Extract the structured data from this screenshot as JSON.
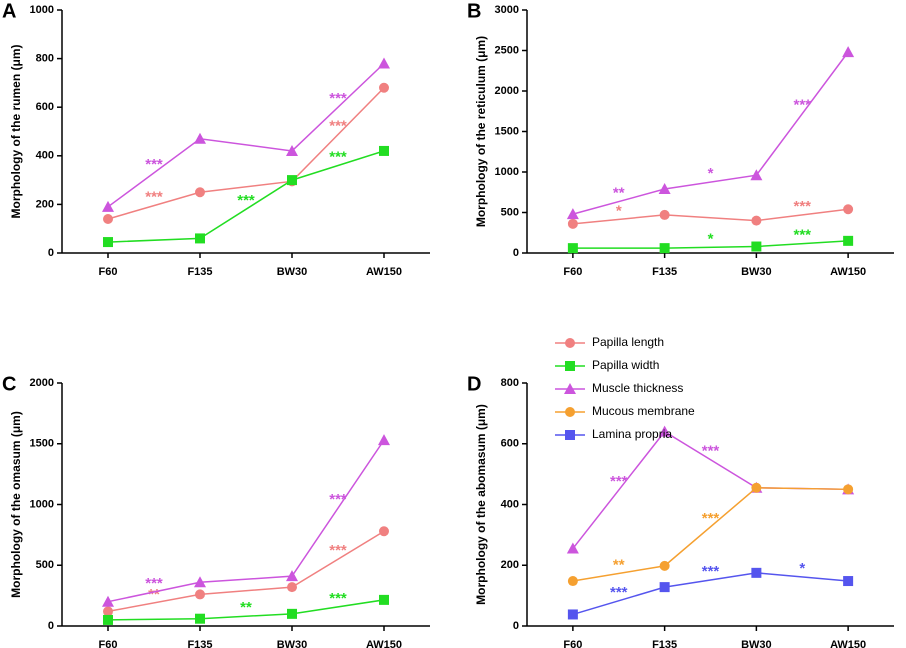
{
  "chart_data": [
    {
      "type": "line",
      "label": "A",
      "ylabel": "Morphology of the rumen (μm)",
      "categories": [
        "F60",
        "F135",
        "BW30",
        "AW150"
      ],
      "ylim": [
        0,
        1000
      ],
      "yticks": [
        0,
        200,
        400,
        600,
        800,
        1000
      ],
      "series": [
        {
          "color": "#f08080",
          "marker": "circle",
          "values": [
            140,
            250,
            295,
            680
          ],
          "significance": [
            "***",
            null,
            "***"
          ]
        },
        {
          "color": "#22dd22",
          "marker": "square",
          "values": [
            45,
            60,
            300,
            420
          ],
          "significance": [
            null,
            "***",
            "***"
          ]
        },
        {
          "color": "#cc55dd",
          "marker": "triangle",
          "values": [
            190,
            470,
            420,
            780
          ],
          "significance": [
            "***",
            null,
            "***"
          ]
        }
      ]
    },
    {
      "type": "line",
      "label": "B",
      "ylabel": "Morphology of the reticulum (μm)",
      "categories": [
        "F60",
        "F135",
        "BW30",
        "AW150"
      ],
      "ylim": [
        0,
        3000
      ],
      "yticks": [
        0,
        500,
        1000,
        1500,
        2000,
        2500,
        3000
      ],
      "series": [
        {
          "color": "#f08080",
          "marker": "circle",
          "values": [
            360,
            470,
            400,
            540
          ],
          "significance": [
            "*",
            null,
            "***"
          ]
        },
        {
          "color": "#22dd22",
          "marker": "square",
          "values": [
            60,
            60,
            80,
            150
          ],
          "significance": [
            null,
            "*",
            "***"
          ]
        },
        {
          "color": "#cc55dd",
          "marker": "triangle",
          "values": [
            480,
            790,
            960,
            2480
          ],
          "significance": [
            "**",
            "*",
            "***"
          ]
        }
      ]
    },
    {
      "type": "line",
      "label": "C",
      "ylabel": "Morphology of the omasum (μm)",
      "categories": [
        "F60",
        "F135",
        "BW30",
        "AW150"
      ],
      "ylim": [
        0,
        2000
      ],
      "yticks": [
        0,
        500,
        1000,
        1500,
        2000
      ],
      "series": [
        {
          "color": "#f08080",
          "marker": "circle",
          "values": [
            120,
            260,
            320,
            780
          ],
          "significance": [
            "**",
            null,
            "***"
          ]
        },
        {
          "color": "#22dd22",
          "marker": "square",
          "values": [
            50,
            60,
            100,
            215
          ],
          "significance": [
            null,
            "**",
            "***"
          ]
        },
        {
          "color": "#cc55dd",
          "marker": "triangle",
          "values": [
            200,
            360,
            410,
            1530
          ],
          "significance": [
            "***",
            null,
            "***"
          ]
        }
      ]
    },
    {
      "type": "line",
      "label": "D",
      "ylabel": "Morphology of the abomasum (μm)",
      "categories": [
        "F60",
        "F135",
        "BW30",
        "AW150"
      ],
      "ylim": [
        0,
        800
      ],
      "yticks": [
        0,
        200,
        400,
        600,
        800
      ],
      "series": [
        {
          "color": "#cc55dd",
          "marker": "triangle",
          "values": [
            255,
            640,
            455,
            450
          ],
          "significance": [
            "***",
            "***",
            null
          ]
        },
        {
          "color": "#f5a030",
          "marker": "circle",
          "values": [
            148,
            198,
            455,
            450
          ],
          "significance": [
            "**",
            "***",
            null
          ]
        },
        {
          "color": "#5555ee",
          "marker": "square",
          "values": [
            38,
            128,
            175,
            148
          ],
          "significance": [
            "***",
            "***",
            "*"
          ]
        }
      ]
    }
  ],
  "legend": [
    {
      "name": "Papilla length",
      "color": "#f08080",
      "marker": "circle"
    },
    {
      "name": "Papilla width",
      "color": "#22dd22",
      "marker": "square"
    },
    {
      "name": "Muscle thickness",
      "color": "#cc55dd",
      "marker": "triangle"
    },
    {
      "name": "Mucous membrane",
      "color": "#f5a030",
      "marker": "circle"
    },
    {
      "name": "Lamina propria",
      "color": "#5555ee",
      "marker": "square"
    }
  ]
}
